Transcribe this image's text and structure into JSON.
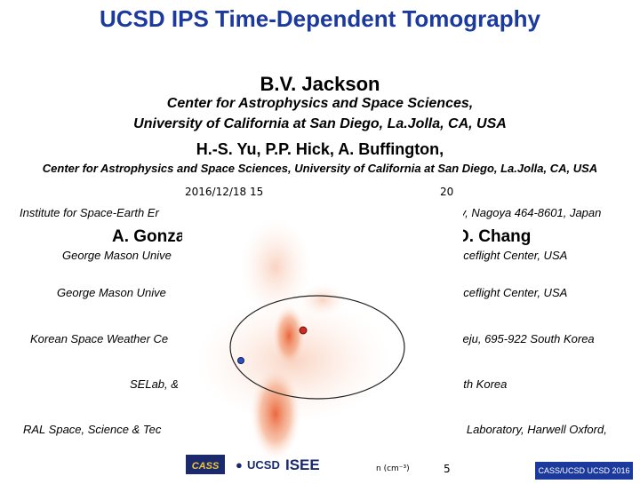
{
  "title": "UCSD IPS Time-Dependent Tomography",
  "author_main": "B.V. Jackson",
  "aff1_line1": "Center for Astrophysics and Space Sciences,",
  "aff1_line2": "University of California at San Diego, La.Jolla, CA, USA",
  "authors2": "H.-S. Yu, P.P. Hick, A. Buffington,",
  "aff2": "Center for Astrophysics and Space Sciences, University of California at San Diego, La.Jolla, CA, USA",
  "rows": {
    "isee_left": "Institute for Space-Earth Er",
    "isee_right": "ty, Nagoya 464-8601, Japan",
    "names_left": "A. Gonza",
    "names_right": "D. Chang",
    "gmu1_left": "George Mason Unive",
    "gmu1_right": "aceflight Center, USA",
    "gmu2_left": "George Mason Unive",
    "gmu2_right": "aceflight Center, USA",
    "ksw_left": "Korean Space Weather Ce",
    "ksw_right": "Jeju, 695-922 South Korea",
    "selab_left": "SELab, &",
    "selab_right": "uth Korea",
    "ral_left": "RAL Space, Science & Tec",
    "ral_right": "n Laboratory, Harwell Oxford,"
  },
  "overlay": {
    "timestamp": "2016/12/18 15",
    "scale_top": "20",
    "scale_bottom": "5",
    "unit": "n (cm⁻³)"
  },
  "logos": {
    "cass": "CASS",
    "ucsd": "UCSD",
    "isee": "ISEE"
  },
  "footer_badge": "CASS/UCSD UCSD 2016",
  "colors": {
    "title": "#1c3a9e",
    "density": "#e8582a",
    "earth": "#2b4fc4",
    "sun": "#cc2a1e"
  }
}
